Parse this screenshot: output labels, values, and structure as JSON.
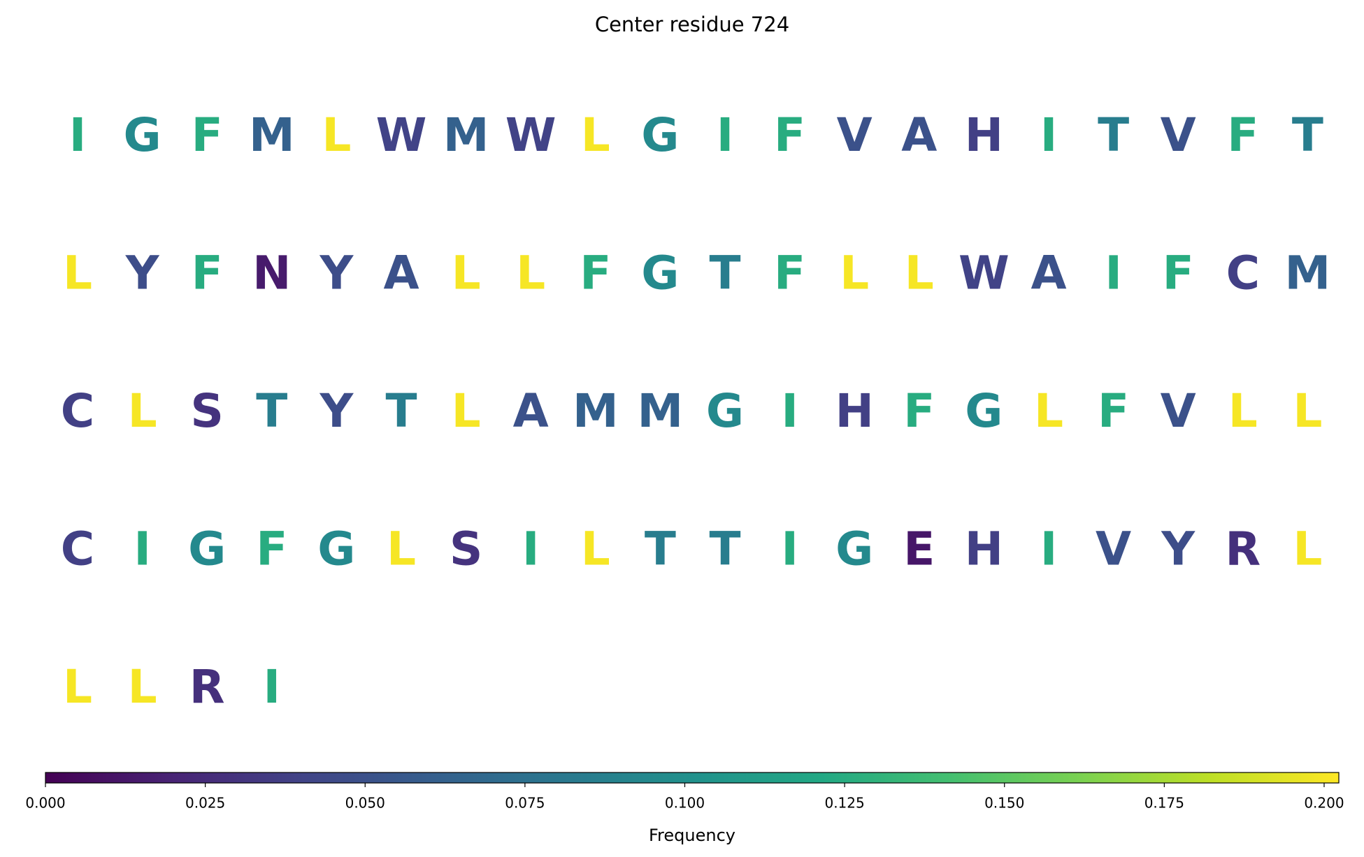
{
  "chart_data": {
    "type": "sequence-logo",
    "title": "Center residue 724",
    "categories": [
      "I",
      "G",
      "F",
      "M",
      "L",
      "W",
      "M",
      "W",
      "L",
      "G",
      "I",
      "F",
      "V",
      "A",
      "H",
      "I",
      "T",
      "V",
      "F",
      "T",
      "L",
      "Y",
      "F",
      "N",
      "Y",
      "A",
      "L",
      "L",
      "F",
      "G",
      "T",
      "F",
      "L",
      "L",
      "W",
      "A",
      "I",
      "F",
      "C",
      "M",
      "C",
      "L",
      "S",
      "T",
      "Y",
      "T",
      "L",
      "A",
      "M",
      "M",
      "G",
      "I",
      "H",
      "F",
      "G",
      "L",
      "F",
      "V",
      "L",
      "L",
      "C",
      "I",
      "G",
      "F",
      "G",
      "L",
      "S",
      "I",
      "L",
      "T",
      "T",
      "I",
      "G",
      "E",
      "H",
      "I",
      "V",
      "Y",
      "R",
      "L",
      "L",
      "L",
      "R",
      "I"
    ],
    "values": [
      0.125,
      0.095,
      0.125,
      0.062,
      0.2,
      0.04,
      0.062,
      0.04,
      0.2,
      0.095,
      0.125,
      0.125,
      0.05,
      0.05,
      0.038,
      0.125,
      0.085,
      0.05,
      0.125,
      0.085,
      0.2,
      0.047,
      0.125,
      0.015,
      0.047,
      0.05,
      0.2,
      0.2,
      0.125,
      0.095,
      0.085,
      0.125,
      0.2,
      0.2,
      0.04,
      0.05,
      0.125,
      0.125,
      0.038,
      0.062,
      0.038,
      0.2,
      0.03,
      0.085,
      0.047,
      0.085,
      0.2,
      0.05,
      0.062,
      0.062,
      0.095,
      0.125,
      0.038,
      0.125,
      0.095,
      0.2,
      0.125,
      0.05,
      0.2,
      0.2,
      0.038,
      0.125,
      0.095,
      0.125,
      0.095,
      0.2,
      0.03,
      0.125,
      0.2,
      0.085,
      0.085,
      0.125,
      0.095,
      0.012,
      0.038,
      0.125,
      0.05,
      0.047,
      0.028,
      0.2,
      0.2,
      0.2,
      0.028,
      0.125
    ],
    "colormap": "viridis",
    "colorbar_label": "Frequency",
    "clim": [
      0,
      0.2023
    ],
    "cticks": [
      {
        "value": 0,
        "label": "0.000"
      },
      {
        "value": 0.025,
        "label": "0.025"
      },
      {
        "value": 0.05,
        "label": "0.050"
      },
      {
        "value": 0.075,
        "label": "0.075"
      },
      {
        "value": 0.1,
        "label": "0.100"
      },
      {
        "value": 0.125,
        "label": "0.125"
      },
      {
        "value": 0.15,
        "label": "0.150"
      },
      {
        "value": 0.175,
        "label": "0.175"
      },
      {
        "value": 0.2,
        "label": "0.200"
      }
    ]
  }
}
